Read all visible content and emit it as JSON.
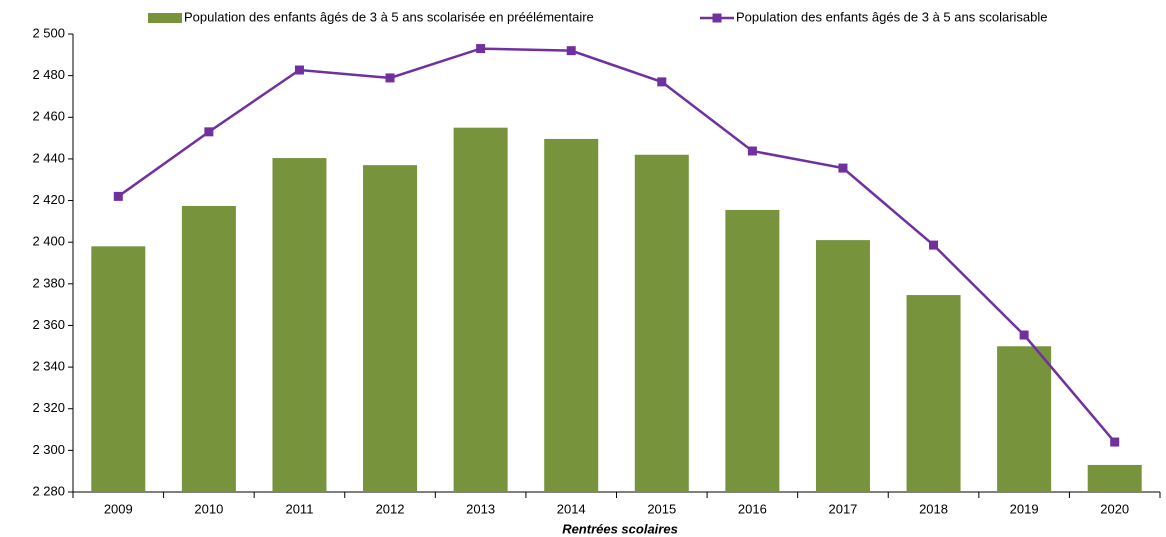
{
  "chart_data": {
    "type": "bar_line",
    "x_label": "Rentrées scolaires",
    "categories": [
      "2009",
      "2010",
      "2011",
      "2012",
      "2013",
      "2014",
      "2015",
      "2016",
      "2017",
      "2018",
      "2019",
      "2020"
    ],
    "series": [
      {
        "name": "Population des enfants âgés de 3 à 5 ans scolarisée en préélémentaire",
        "type": "bar",
        "color": "#77933c",
        "values": [
          2398,
          2417.4,
          2440.4,
          2437,
          2455,
          2449.6,
          2442,
          2415.5,
          2401,
          2374.6,
          2350,
          2293
        ]
      },
      {
        "name": "Population des enfants âgés de 3 à 5 ans scolarisable",
        "type": "line",
        "color": "#7030a0",
        "values": [
          2422,
          2453,
          2482.7,
          2478.9,
          2493,
          2492,
          2477,
          2443.8,
          2435.6,
          2398.6,
          2355.4,
          2304
        ]
      }
    ],
    "ylim": [
      2280,
      2500
    ],
    "yticks": [
      {
        "value": 2280,
        "label": "2 280"
      },
      {
        "value": 2300,
        "label": "2 300"
      },
      {
        "value": 2320,
        "label": "2 320"
      },
      {
        "value": 2340,
        "label": "2 340"
      },
      {
        "value": 2360,
        "label": "2 360"
      },
      {
        "value": 2380,
        "label": "2 380"
      },
      {
        "value": 2400,
        "label": "2 400"
      },
      {
        "value": 2420,
        "label": "2 420"
      },
      {
        "value": 2440,
        "label": "2 440"
      },
      {
        "value": 2460,
        "label": "2 460"
      },
      {
        "value": 2480,
        "label": "2 480"
      },
      {
        "value": 2500,
        "label": "2 500"
      }
    ],
    "grid": false,
    "legend": "top"
  }
}
